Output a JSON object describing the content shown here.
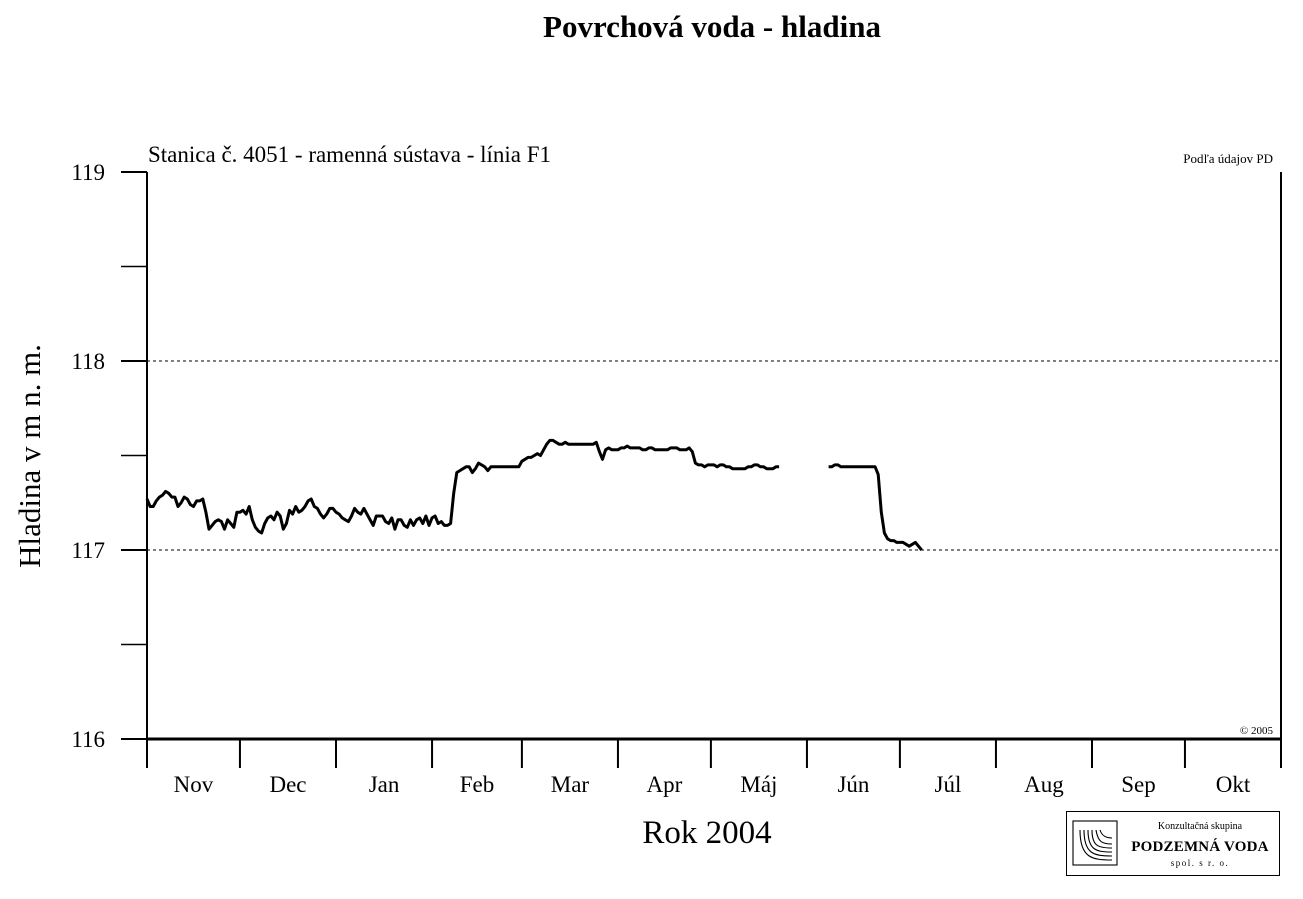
{
  "chart_data": {
    "type": "line",
    "title": "Povrchová voda - hladina",
    "subtitle": "Stanica č. 4051 - ramenná sústava - línia F1",
    "source_note": "Podľa údajov PD",
    "copyright": "© 2005",
    "xlabel": "Rok 2004",
    "ylabel": "Hladina v m n. m.",
    "ylim": [
      116,
      119
    ],
    "y_ticks": [
      "116",
      "117",
      "118",
      "119"
    ],
    "gridlines_y": [
      117,
      118
    ],
    "x_month_start": "Nov",
    "x_months": [
      "Nov",
      "Dec",
      "Jan",
      "Feb",
      "Mar",
      "Apr",
      "Máj",
      "Jún",
      "Júl",
      "Aug",
      "Sep",
      "Okt"
    ],
    "month_lengths": [
      30,
      31,
      31,
      29,
      31,
      30,
      31,
      30,
      31,
      31,
      30,
      31
    ],
    "series": [
      {
        "values": [
          [
            0,
            117.27
          ],
          [
            1,
            117.23
          ],
          [
            2,
            117.23
          ],
          [
            3,
            117.26
          ],
          [
            4,
            117.28
          ],
          [
            5,
            117.29
          ],
          [
            6,
            117.31
          ],
          [
            7,
            117.3
          ],
          [
            8,
            117.28
          ],
          [
            9,
            117.28
          ],
          [
            10,
            117.23
          ],
          [
            11,
            117.25
          ],
          [
            12,
            117.28
          ],
          [
            13,
            117.27
          ],
          [
            14,
            117.24
          ],
          [
            15,
            117.23
          ],
          [
            16,
            117.26
          ],
          [
            17,
            117.26
          ],
          [
            18,
            117.27
          ],
          [
            19,
            117.2
          ],
          [
            20,
            117.11
          ],
          [
            21,
            117.13
          ],
          [
            22,
            117.15
          ],
          [
            23,
            117.16
          ],
          [
            24,
            117.15
          ],
          [
            25,
            117.11
          ],
          [
            26,
            117.16
          ],
          [
            27,
            117.14
          ],
          [
            28,
            117.12
          ],
          [
            29,
            117.2
          ],
          [
            30,
            117.2
          ],
          [
            31,
            117.21
          ],
          [
            32,
            117.19
          ],
          [
            33,
            117.23
          ],
          [
            34,
            117.16
          ],
          [
            35,
            117.12
          ],
          [
            36,
            117.1
          ],
          [
            37,
            117.09
          ],
          [
            38,
            117.14
          ],
          [
            39,
            117.17
          ],
          [
            40,
            117.18
          ],
          [
            41,
            117.16
          ],
          [
            42,
            117.2
          ],
          [
            43,
            117.18
          ],
          [
            44,
            117.11
          ],
          [
            45,
            117.14
          ],
          [
            46,
            117.21
          ],
          [
            47,
            117.19
          ],
          [
            48,
            117.23
          ],
          [
            49,
            117.2
          ],
          [
            50,
            117.21
          ],
          [
            51,
            117.23
          ],
          [
            52,
            117.26
          ],
          [
            53,
            117.27
          ],
          [
            54,
            117.23
          ],
          [
            55,
            117.22
          ],
          [
            56,
            117.19
          ],
          [
            57,
            117.17
          ],
          [
            58,
            117.19
          ],
          [
            59,
            117.22
          ],
          [
            60,
            117.22
          ],
          [
            61,
            117.2
          ],
          [
            62,
            117.19
          ],
          [
            63,
            117.17
          ],
          [
            64,
            117.16
          ],
          [
            65,
            117.15
          ],
          [
            66,
            117.18
          ],
          [
            67,
            117.22
          ],
          [
            68,
            117.2
          ],
          [
            69,
            117.19
          ],
          [
            70,
            117.22
          ],
          [
            71,
            117.19
          ],
          [
            72,
            117.16
          ],
          [
            73,
            117.13
          ],
          [
            74,
            117.18
          ],
          [
            75,
            117.18
          ],
          [
            76,
            117.18
          ],
          [
            77,
            117.15
          ],
          [
            78,
            117.14
          ],
          [
            79,
            117.17
          ],
          [
            80,
            117.11
          ],
          [
            81,
            117.16
          ],
          [
            82,
            117.16
          ],
          [
            83,
            117.13
          ],
          [
            84,
            117.12
          ],
          [
            85,
            117.16
          ],
          [
            86,
            117.13
          ],
          [
            87,
            117.16
          ],
          [
            88,
            117.17
          ],
          [
            89,
            117.14
          ],
          [
            90,
            117.18
          ],
          [
            91,
            117.13
          ],
          [
            92,
            117.17
          ],
          [
            93,
            117.18
          ],
          [
            94,
            117.14
          ],
          [
            95,
            117.15
          ],
          [
            96,
            117.13
          ],
          [
            97,
            117.13
          ],
          [
            98,
            117.14
          ],
          [
            99,
            117.3
          ],
          [
            100,
            117.41
          ],
          [
            101,
            117.42
          ],
          [
            102,
            117.43
          ],
          [
            103,
            117.44
          ],
          [
            104,
            117.44
          ],
          [
            105,
            117.41
          ],
          [
            106,
            117.43
          ],
          [
            107,
            117.46
          ],
          [
            108,
            117.45
          ],
          [
            109,
            117.44
          ],
          [
            110,
            117.42
          ],
          [
            111,
            117.44
          ],
          [
            112,
            117.44
          ],
          [
            113,
            117.44
          ],
          [
            114,
            117.44
          ],
          [
            115,
            117.44
          ],
          [
            116,
            117.44
          ],
          [
            117,
            117.44
          ],
          [
            118,
            117.44
          ],
          [
            119,
            117.44
          ],
          [
            120,
            117.44
          ],
          [
            121,
            117.47
          ],
          [
            122,
            117.48
          ],
          [
            123,
            117.49
          ],
          [
            124,
            117.49
          ],
          [
            125,
            117.5
          ],
          [
            126,
            117.51
          ],
          [
            127,
            117.5
          ],
          [
            128,
            117.53
          ],
          [
            129,
            117.56
          ],
          [
            130,
            117.58
          ],
          [
            131,
            117.58
          ],
          [
            132,
            117.57
          ],
          [
            133,
            117.56
          ],
          [
            134,
            117.56
          ],
          [
            135,
            117.57
          ],
          [
            136,
            117.56
          ],
          [
            137,
            117.56
          ],
          [
            138,
            117.56
          ],
          [
            139,
            117.56
          ],
          [
            140,
            117.56
          ],
          [
            141,
            117.56
          ],
          [
            142,
            117.56
          ],
          [
            143,
            117.56
          ],
          [
            144,
            117.56
          ],
          [
            145,
            117.57
          ],
          [
            146,
            117.52
          ],
          [
            147,
            117.48
          ],
          [
            148,
            117.53
          ],
          [
            149,
            117.54
          ],
          [
            150,
            117.53
          ],
          [
            151,
            117.53
          ],
          [
            152,
            117.53
          ],
          [
            153,
            117.54
          ],
          [
            154,
            117.54
          ],
          [
            155,
            117.55
          ],
          [
            156,
            117.54
          ],
          [
            157,
            117.54
          ],
          [
            158,
            117.54
          ],
          [
            159,
            117.54
          ],
          [
            160,
            117.53
          ],
          [
            161,
            117.53
          ],
          [
            162,
            117.54
          ],
          [
            163,
            117.54
          ],
          [
            164,
            117.53
          ],
          [
            165,
            117.53
          ],
          [
            166,
            117.53
          ],
          [
            167,
            117.53
          ],
          [
            168,
            117.53
          ],
          [
            169,
            117.54
          ],
          [
            170,
            117.54
          ],
          [
            171,
            117.54
          ],
          [
            172,
            117.53
          ],
          [
            173,
            117.53
          ],
          [
            174,
            117.53
          ],
          [
            175,
            117.54
          ],
          [
            176,
            117.52
          ],
          [
            177,
            117.46
          ],
          [
            178,
            117.45
          ],
          [
            179,
            117.45
          ],
          [
            180,
            117.44
          ],
          [
            181,
            117.45
          ],
          [
            182,
            117.45
          ],
          [
            183,
            117.45
          ],
          [
            184,
            117.44
          ],
          [
            185,
            117.45
          ],
          [
            186,
            117.45
          ],
          [
            187,
            117.44
          ],
          [
            188,
            117.44
          ],
          [
            189,
            117.43
          ],
          [
            190,
            117.43
          ],
          [
            191,
            117.43
          ],
          [
            192,
            117.43
          ],
          [
            193,
            117.43
          ],
          [
            194,
            117.44
          ],
          [
            195,
            117.44
          ],
          [
            196,
            117.45
          ],
          [
            197,
            117.45
          ],
          [
            198,
            117.44
          ],
          [
            199,
            117.44
          ],
          [
            200,
            117.43
          ],
          [
            201,
            117.43
          ],
          [
            202,
            117.43
          ],
          [
            203,
            117.44
          ],
          [
            204,
            117.44
          ],
          null,
          [
            220,
            117.44
          ],
          [
            221,
            117.44
          ],
          [
            222,
            117.45
          ],
          [
            223,
            117.45
          ],
          [
            224,
            117.44
          ],
          [
            225,
            117.44
          ],
          [
            226,
            117.44
          ],
          [
            227,
            117.44
          ],
          [
            228,
            117.44
          ],
          [
            229,
            117.44
          ],
          [
            230,
            117.44
          ],
          [
            231,
            117.44
          ],
          [
            232,
            117.44
          ],
          [
            233,
            117.44
          ],
          [
            234,
            117.44
          ],
          [
            235,
            117.44
          ],
          [
            236,
            117.4
          ],
          [
            237,
            117.2
          ],
          [
            238,
            117.09
          ],
          [
            239,
            117.06
          ],
          [
            240,
            117.05
          ],
          [
            241,
            117.05
          ],
          [
            242,
            117.04
          ],
          [
            243,
            117.04
          ],
          [
            244,
            117.04
          ],
          [
            245,
            117.03
          ],
          [
            246,
            117.02
          ],
          [
            247,
            117.03
          ],
          [
            248,
            117.04
          ],
          [
            249,
            117.02
          ],
          [
            250,
            117.0
          ]
        ]
      }
    ]
  },
  "logo": {
    "line1": "Konzultačná skupina",
    "line2": "PODZEMNÁ VODA",
    "line3": "spol. s r. o."
  }
}
